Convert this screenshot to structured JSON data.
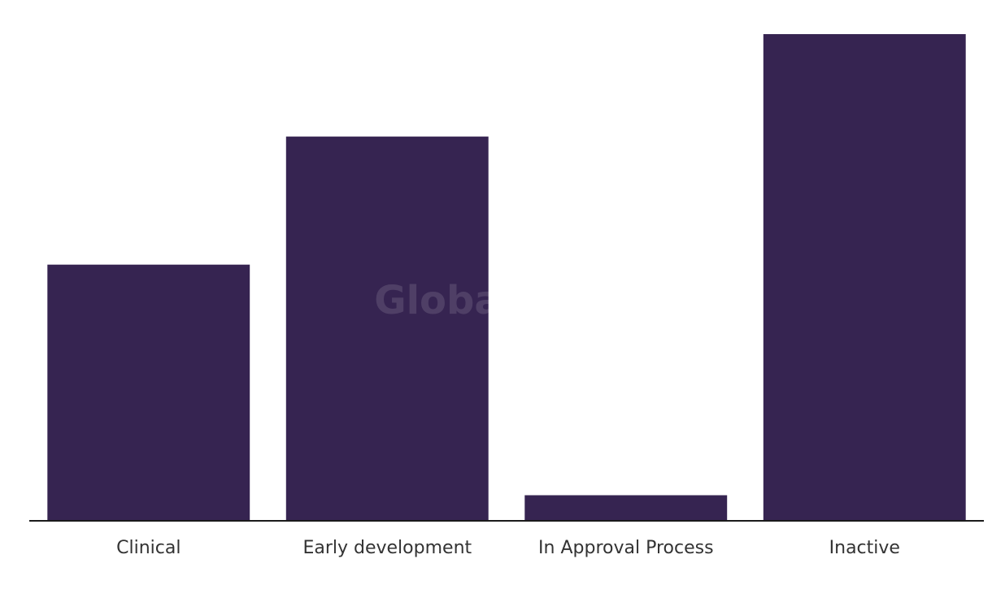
{
  "chart_data": {
    "type": "bar",
    "title": "",
    "xlabel": "",
    "ylabel": "",
    "categories": [
      "Clinical",
      "Early development",
      "In Approval Process",
      "Inactive"
    ],
    "values": [
      10,
      15,
      1,
      19
    ],
    "ylim": [
      0,
      19
    ],
    "grid": false,
    "legend": "none",
    "bar_color": "#362451"
  },
  "watermark": "GlobalData"
}
